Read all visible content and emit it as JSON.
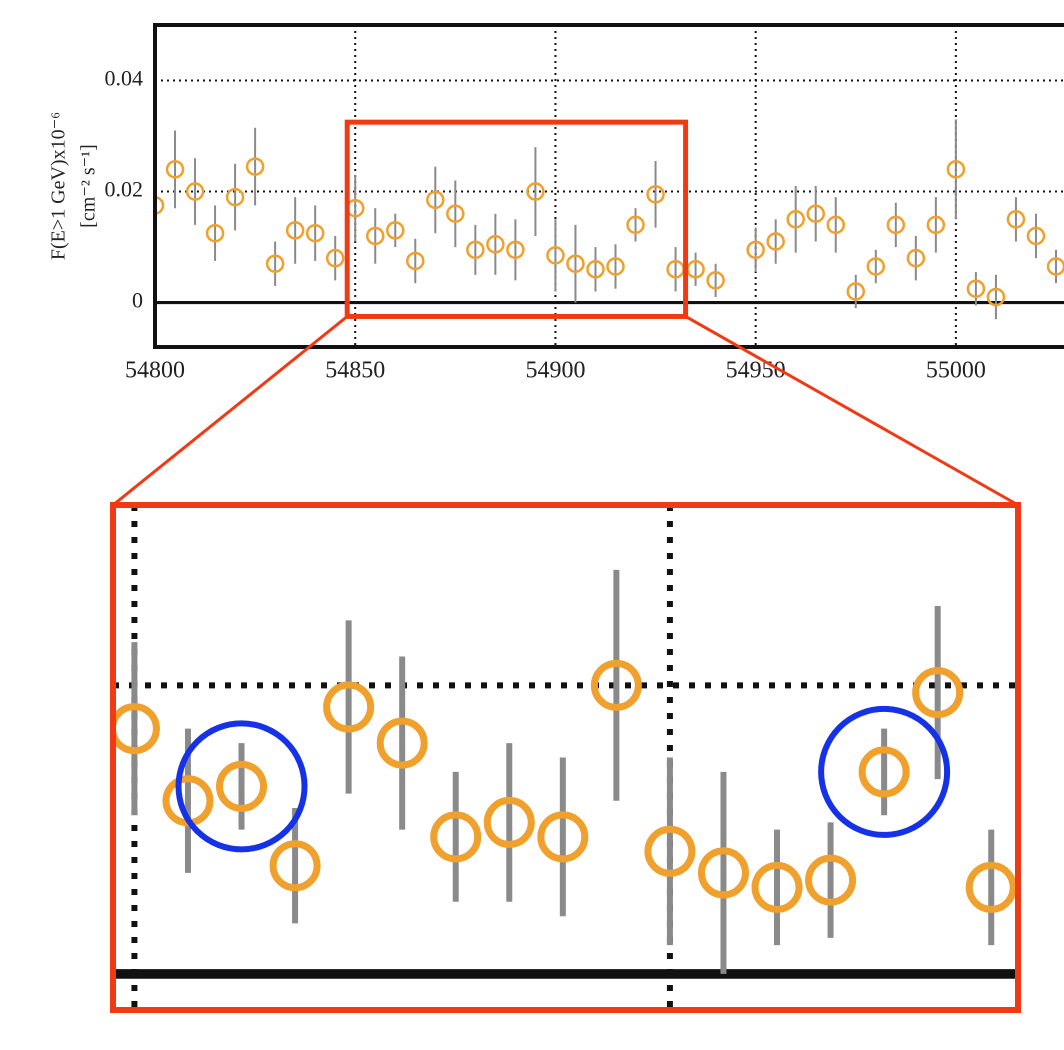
{
  "chart_data": {
    "type": "scatter",
    "ylabel": [
      "F(E>1 GeV)x10⁻⁶",
      "[cm⁻² s⁻¹]"
    ],
    "xlim": [
      54800,
      55027
    ],
    "ylim": [
      -0.008,
      0.05
    ],
    "xticks": [
      54800,
      54850,
      54900,
      54950,
      55000
    ],
    "yticks": [
      0,
      0.02,
      0.04
    ],
    "grid": true,
    "color": "#f0a02c",
    "error_color": "#8a8a8a",
    "x": [
      54800,
      54805,
      54810,
      54815,
      54820,
      54825,
      54830,
      54835,
      54840,
      54845,
      54850,
      54855,
      54860,
      54865,
      54870,
      54875,
      54880,
      54885,
      54890,
      54895,
      54900,
      54905,
      54910,
      54915,
      54920,
      54925,
      54930,
      54935,
      54940,
      54950,
      54955,
      54960,
      54965,
      54970,
      54975,
      54980,
      54985,
      54990,
      54995,
      55000,
      55005,
      55010,
      55015,
      55020,
      55025
    ],
    "values": [
      0.0175,
      0.024,
      0.02,
      0.0125,
      0.019,
      0.0245,
      0.007,
      0.013,
      0.0125,
      0.008,
      0.017,
      0.012,
      0.013,
      0.0075,
      0.0185,
      0.016,
      0.0095,
      0.0105,
      0.0095,
      0.02,
      0.0085,
      0.007,
      0.006,
      0.0065,
      0.014,
      0.0195,
      0.006,
      0.006,
      0.004,
      0.0095,
      0.011,
      0.015,
      0.016,
      0.014,
      0.002,
      0.0065,
      0.014,
      0.008,
      0.014,
      0.024,
      0.0025,
      0.001,
      0.015,
      0.012,
      0.0065
    ],
    "errors": [
      0.004,
      0.007,
      0.006,
      0.005,
      0.006,
      0.007,
      0.004,
      0.006,
      0.005,
      0.004,
      0.006,
      0.005,
      0.003,
      0.004,
      0.006,
      0.006,
      0.0045,
      0.0055,
      0.0055,
      0.008,
      0.0065,
      0.007,
      0.004,
      0.004,
      0.003,
      0.006,
      0.004,
      0.003,
      0.003,
      0.004,
      0.004,
      0.006,
      0.005,
      0.005,
      0.003,
      0.003,
      0.004,
      0.004,
      0.005,
      0.009,
      0.003,
      0.004,
      0.004,
      0.004,
      0.003
    ],
    "zoom": {
      "xlim": [
        54848,
        54932.5
      ],
      "ylim": [
        -0.0025,
        0.0325
      ],
      "color": "#f03a14"
    },
    "highlight": {
      "x": [
        54860,
        54920
      ],
      "color": "#1632e6"
    }
  }
}
